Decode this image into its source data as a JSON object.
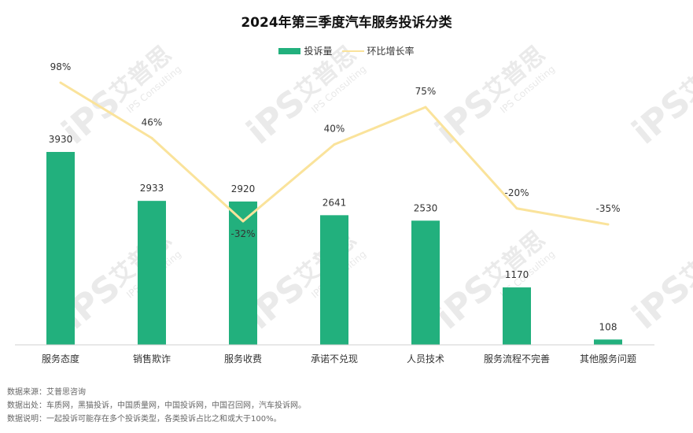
{
  "colors": {
    "bar": "#22b07d",
    "line": "#fae39b",
    "axis": "#d0d0d0",
    "text": "#333333"
  },
  "watermark": {
    "logo": "iPS",
    "brand": "艾普思",
    "tagline": "IPS Consulting"
  },
  "chart_data": {
    "type": "bar",
    "title": "2024年第三季度汽车服务投诉分类",
    "categories": [
      "服务态度",
      "销售欺诈",
      "服务收费",
      "承诺不兑现",
      "人员技术",
      "服务流程不完善",
      "其他服务问题"
    ],
    "series": [
      {
        "name": "投诉量",
        "type": "bar",
        "values": [
          3930,
          2933,
          2920,
          2641,
          2530,
          1170,
          108
        ],
        "labels": [
          "3930",
          "2933",
          "2920",
          "2641",
          "2530",
          "1170",
          "108"
        ]
      },
      {
        "name": "环比增长率",
        "type": "line",
        "values": [
          98,
          46,
          -32,
          40,
          75,
          -20,
          -35
        ],
        "labels": [
          "98%",
          "46%",
          "-32%",
          "40%",
          "75%",
          "-20%",
          "-35%"
        ]
      }
    ],
    "bar_ylim": [
      0,
      3930
    ],
    "line_ylim": [
      -32,
      98
    ],
    "legend_position": "top-center",
    "grid": false
  },
  "notes": {
    "source": "数据来源：艾普思咨询",
    "origin": "数据出处：车质网，黑猫投诉，中国质量网，中国投诉网，中国召回网，汽车投诉网。",
    "explanation": "数据说明：一起投诉可能存在多个投诉类型，各类投诉占比之和或大于100%。"
  }
}
